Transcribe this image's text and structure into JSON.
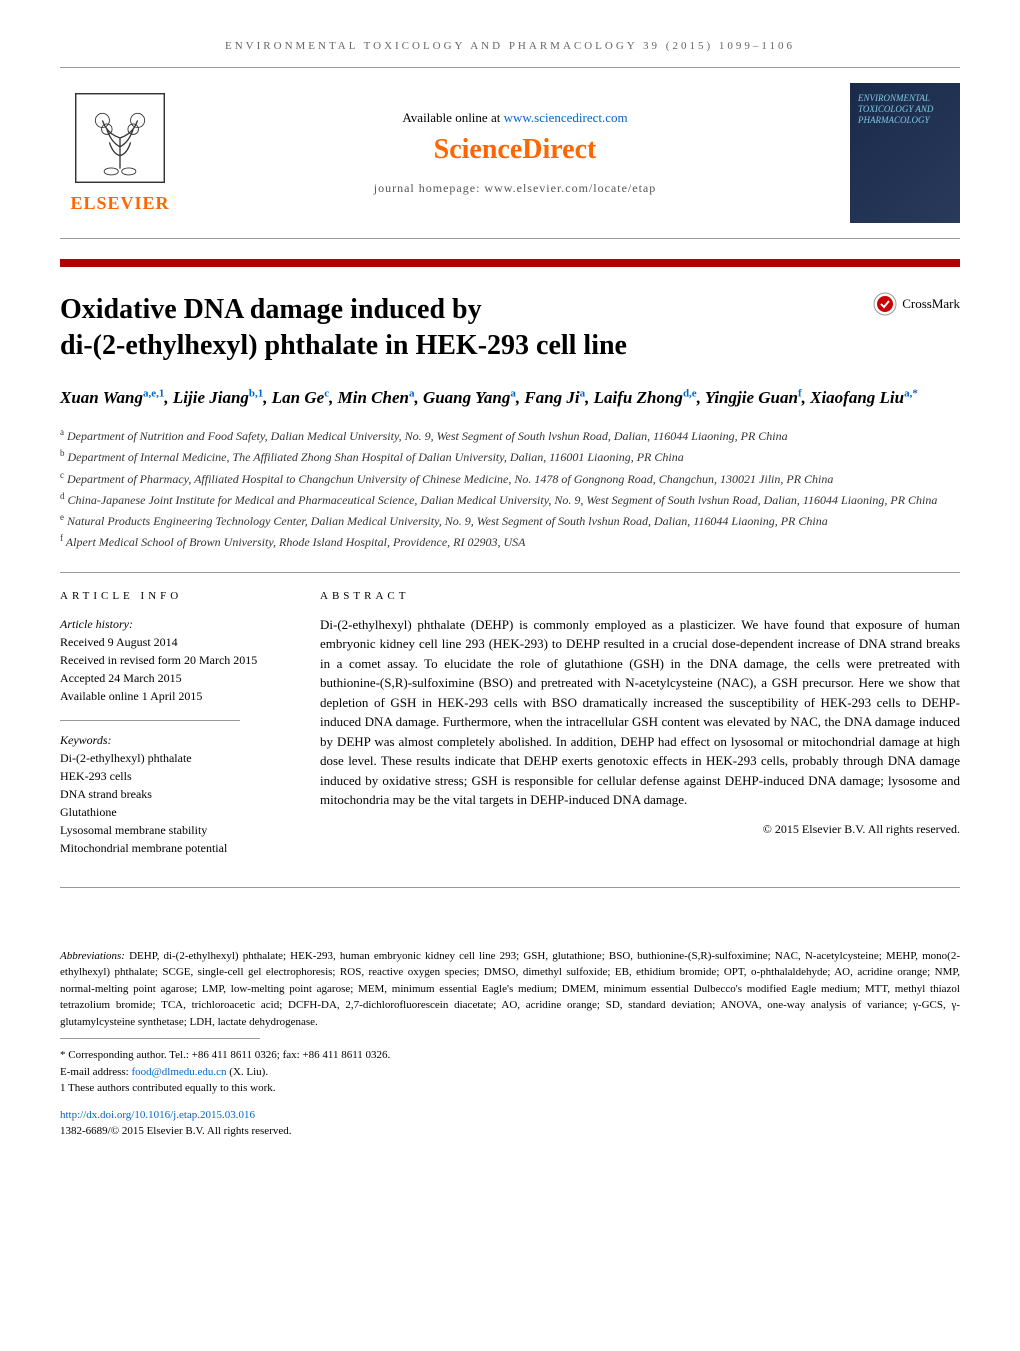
{
  "journal_header": "ENVIRONMENTAL TOXICOLOGY AND PHARMACOLOGY 39 (2015) 1099–1106",
  "header": {
    "available_prefix": "Available online at ",
    "available_link": "www.sciencedirect.com",
    "sciencedirect": "ScienceDirect",
    "homepage": "journal homepage: www.elsevier.com/locate/etap",
    "elsevier": "ELSEVIER",
    "cover_text": "ENVIRONMENTAL TOXICOLOGY AND PHARMACOLOGY"
  },
  "crossmark": "CrossMark",
  "title_line1": "Oxidative DNA damage induced by",
  "title_line2": "di-(2-ethylhexyl) phthalate in HEK-293 cell line",
  "authors_html": "Xuan Wang<sup>a,e,1</sup>, Lijie Jiang<sup>b,1</sup>, Lan Ge<sup>c</sup>, Min Chen<sup>a</sup>, Guang Yang<sup>a</sup>, Fang Ji<sup>a</sup>, Laifu Zhong<sup>d,e</sup>, Yingjie Guan<sup>f</sup>, Xiaofang Liu<sup>a,*</sup>",
  "affiliations": {
    "a": "Department of Nutrition and Food Safety, Dalian Medical University, No. 9, West Segment of South lvshun Road, Dalian, 116044 Liaoning, PR China",
    "b": "Department of Internal Medicine, The Affiliated Zhong Shan Hospital of Dalian University, Dalian, 116001 Liaoning, PR China",
    "c": "Department of Pharmacy, Affiliated Hospital to Changchun University of Chinese Medicine, No. 1478 of Gongnong Road, Changchun, 130021 Jilin, PR China",
    "d": "China-Japanese Joint Institute for Medical and Pharmaceutical Science, Dalian Medical University, No. 9, West Segment of South lvshun Road, Dalian, 116044 Liaoning, PR China",
    "e": "Natural Products Engineering Technology Center, Dalian Medical University, No. 9, West Segment of South lvshun Road, Dalian, 116044 Liaoning, PR China",
    "f": "Alpert Medical School of Brown University, Rhode Island Hospital, Providence, RI 02903, USA"
  },
  "article_info": {
    "header": "ARTICLE INFO",
    "history_label": "Article history:",
    "received": "Received 9 August 2014",
    "revised": "Received in revised form 20 March 2015",
    "accepted": "Accepted 24 March 2015",
    "online": "Available online 1 April 2015",
    "keywords_label": "Keywords:",
    "keywords": [
      "Di-(2-ethylhexyl) phthalate",
      "HEK-293 cells",
      "DNA strand breaks",
      "Glutathione",
      "Lysosomal membrane stability",
      "Mitochondrial membrane potential"
    ]
  },
  "abstract": {
    "header": "ABSTRACT",
    "text": "Di-(2-ethylhexyl) phthalate (DEHP) is commonly employed as a plasticizer. We have found that exposure of human embryonic kidney cell line 293 (HEK-293) to DEHP resulted in a crucial dose-dependent increase of DNA strand breaks in a comet assay. To elucidate the role of glutathione (GSH) in the DNA damage, the cells were pretreated with buthionine-(S,R)-sulfoximine (BSO) and pretreated with N-acetylcysteine (NAC), a GSH precursor. Here we show that depletion of GSH in HEK-293 cells with BSO dramatically increased the susceptibility of HEK-293 cells to DEHP-induced DNA damage. Furthermore, when the intracellular GSH content was elevated by NAC, the DNA damage induced by DEHP was almost completely abolished. In addition, DEHP had effect on lysosomal or mitochondrial damage at high dose level. These results indicate that DEHP exerts genotoxic effects in HEK-293 cells, probably through DNA damage induced by oxidative stress; GSH is responsible for cellular defense against DEHP-induced DNA damage; lysosome and mitochondria may be the vital targets in DEHP-induced DNA damage.",
    "copyright": "© 2015 Elsevier B.V. All rights reserved."
  },
  "footer": {
    "abbrev_label": "Abbreviations:",
    "abbrev_text": " DEHP, di-(2-ethylhexyl) phthalate; HEK-293, human embryonic kidney cell line 293; GSH, glutathione; BSO, buthionine-(S,R)-sulfoximine; NAC, N-acetylcysteine; MEHP, mono(2-ethylhexyl) phthalate; SCGE, single-cell gel electrophoresis; ROS, reactive oxygen species; DMSO, dimethyl sulfoxide; EB, ethidium bromide; OPT, o-phthalaldehyde; AO, acridine orange; NMP, normal-melting point agarose; LMP, low-melting point agarose; MEM, minimum essential Eagle's medium; DMEM, minimum essential Dulbecco's modified Eagle medium; MTT, methyl thiazol tetrazolium bromide; TCA, trichloroacetic acid; DCFH-DA, 2,7-dichlorofluorescein diacetate; AO, acridine orange; SD, standard deviation; ANOVA, one-way analysis of variance; γ-GCS, γ-glutamylcysteine synthetase; LDH, lactate dehydrogenase.",
    "corresponding": "* Corresponding author. Tel.: +86 411 8611 0326; fax: +86 411 8611 0326.",
    "email_label": "E-mail address: ",
    "email": "food@dlmedu.edu.cn",
    "email_suffix": " (X. Liu).",
    "contrib": "1 These authors contributed equally to this work.",
    "doi": "http://dx.doi.org/10.1016/j.etap.2015.03.016",
    "issn": "1382-6689/© 2015 Elsevier B.V. All rights reserved."
  },
  "colors": {
    "orange": "#ff6600",
    "red_bar": "#b30000",
    "link": "#0066cc",
    "cover_bg": "#1a2a4a"
  }
}
